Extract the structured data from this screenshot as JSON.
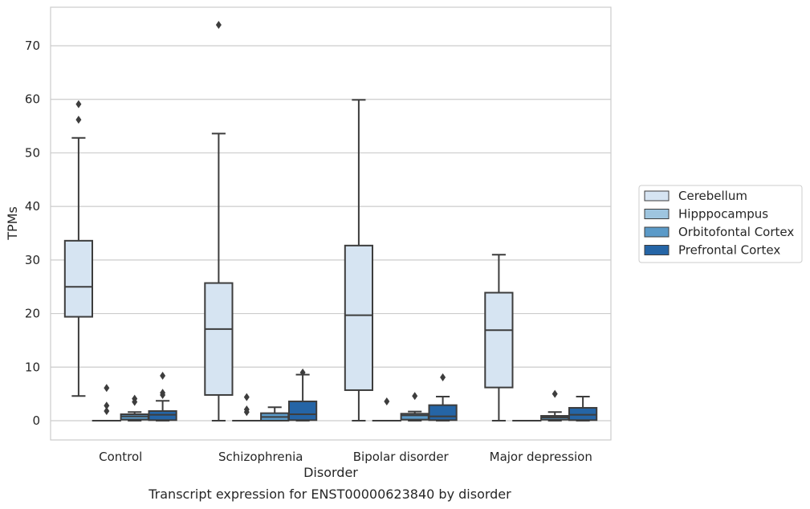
{
  "chart_data": {
    "type": "box",
    "title": "",
    "xlabel": "Disorder",
    "ylabel": "TPMs",
    "caption": "Transcript expression for ENST00000623840 by disorder",
    "categories": [
      "Control",
      "Schizophrenia",
      "Bipolar disorder",
      "Major depression"
    ],
    "ylim": [
      -3.6,
      77.2
    ],
    "yticks": [
      0,
      10,
      20,
      30,
      40,
      50,
      60,
      70
    ],
    "grid": "horizontal",
    "legend_position": "right",
    "series": [
      {
        "name": "Cerebellum",
        "color": "#d6e4f2",
        "boxes": [
          {
            "whisker_low": 4.6,
            "q1": 19.4,
            "median": 25.0,
            "q3": 33.6,
            "whisker_high": 52.8,
            "outliers": [
              56.2,
              59.1
            ]
          },
          {
            "whisker_low": 0.0,
            "q1": 4.8,
            "median": 17.1,
            "q3": 25.7,
            "whisker_high": 53.6,
            "outliers": [
              73.9
            ]
          },
          {
            "whisker_low": 0.0,
            "q1": 5.7,
            "median": 19.7,
            "q3": 32.7,
            "whisker_high": 59.9,
            "outliers": []
          },
          {
            "whisker_low": 0.0,
            "q1": 6.2,
            "median": 16.9,
            "q3": 23.9,
            "whisker_high": 31.0,
            "outliers": []
          }
        ]
      },
      {
        "name": "Hipppocampus",
        "color": "#9ec5df",
        "boxes": [
          {
            "whisker_low": 0.0,
            "q1": 0.0,
            "median": 0.0,
            "q3": 0.0,
            "whisker_high": 0.0,
            "outliers": [
              1.8,
              2.8,
              6.1
            ]
          },
          {
            "whisker_low": 0.0,
            "q1": 0.0,
            "median": 0.0,
            "q3": 0.0,
            "whisker_high": 0.0,
            "outliers": [
              1.6,
              2.1,
              4.4
            ]
          },
          {
            "whisker_low": 0.0,
            "q1": 0.0,
            "median": 0.0,
            "q3": 0.0,
            "whisker_high": 0.0,
            "outliers": [
              3.6
            ]
          },
          {
            "whisker_low": 0.0,
            "q1": 0.0,
            "median": 0.0,
            "q3": 0.0,
            "whisker_high": 0.0,
            "outliers": []
          }
        ]
      },
      {
        "name": "Orbitofontal Cortex",
        "color": "#5b9ac8",
        "boxes": [
          {
            "whisker_low": 0.0,
            "q1": 0.2,
            "median": 0.8,
            "q3": 1.2,
            "whisker_high": 1.6,
            "outliers": [
              3.5,
              4.1
            ]
          },
          {
            "whisker_low": 0.0,
            "q1": 0.0,
            "median": 0.7,
            "q3": 1.4,
            "whisker_high": 2.5,
            "outliers": []
          },
          {
            "whisker_low": 0.0,
            "q1": 0.2,
            "median": 1.0,
            "q3": 1.3,
            "whisker_high": 1.7,
            "outliers": [
              4.6
            ]
          },
          {
            "whisker_low": 0.0,
            "q1": 0.2,
            "median": 0.6,
            "q3": 0.9,
            "whisker_high": 1.6,
            "outliers": [
              5.0
            ]
          }
        ]
      },
      {
        "name": "Prefrontal Cortex",
        "color": "#2565a6",
        "boxes": [
          {
            "whisker_low": 0.0,
            "q1": 0.1,
            "median": 1.1,
            "q3": 1.8,
            "whisker_high": 3.7,
            "outliers": [
              4.8,
              5.2,
              8.4
            ]
          },
          {
            "whisker_low": 0.0,
            "q1": 0.1,
            "median": 1.2,
            "q3": 3.6,
            "whisker_high": 8.6,
            "outliers": [
              9.0
            ]
          },
          {
            "whisker_low": 0.0,
            "q1": 0.1,
            "median": 0.8,
            "q3": 2.9,
            "whisker_high": 4.5,
            "outliers": [
              8.1
            ]
          },
          {
            "whisker_low": 0.0,
            "q1": 0.1,
            "median": 1.1,
            "q3": 2.4,
            "whisker_high": 4.5,
            "outliers": []
          }
        ]
      }
    ]
  }
}
